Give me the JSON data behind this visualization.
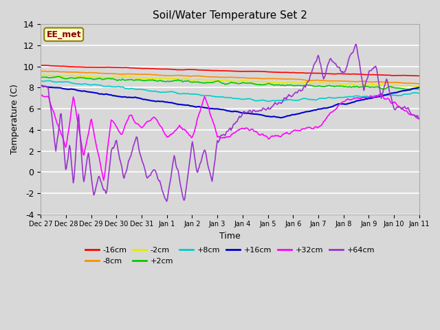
{
  "title": "Soil/Water Temperature Set 2",
  "xlabel": "Time",
  "ylabel": "Temperature (C)",
  "ylim": [
    -4,
    14
  ],
  "yticks": [
    -4,
    -2,
    0,
    2,
    4,
    6,
    8,
    10,
    12,
    14
  ],
  "background_color": "#d8d8d8",
  "plot_bg_color": "#d8d8d8",
  "annotation_text": "EE_met",
  "lines": {
    "-16cm": {
      "color": "#ff0000",
      "lw": 1.2
    },
    "-8cm": {
      "color": "#ff8c00",
      "lw": 1.2
    },
    "-2cm": {
      "color": "#e8e800",
      "lw": 1.2
    },
    "+2cm": {
      "color": "#00cc00",
      "lw": 1.2
    },
    "+8cm": {
      "color": "#00cccc",
      "lw": 1.2
    },
    "+16cm": {
      "color": "#0000cc",
      "lw": 1.5
    },
    "+32cm": {
      "color": "#ff00ff",
      "lw": 1.2
    },
    "+64cm": {
      "color": "#9933cc",
      "lw": 1.2
    }
  },
  "tick_labels": [
    "Dec 27",
    "Dec 28",
    "Dec 29",
    "Dec 30",
    "Dec 31",
    "Jan 1",
    "Jan 2",
    "Jan 3",
    "Jan 4",
    "Jan 5",
    "Jan 6",
    "Jan 7",
    "Jan 8",
    "Jan 9",
    "Jan 10",
    "Jan 11"
  ]
}
